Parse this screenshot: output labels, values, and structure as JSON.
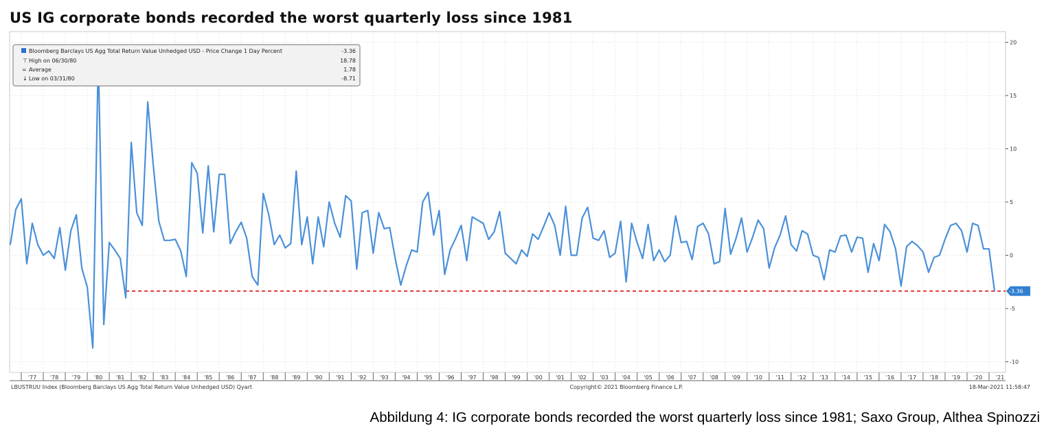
{
  "title": "US IG corporate bonds recorded the worst quarterly loss since 1981",
  "caption": "Abbildung 4: IG corporate bonds recorded the worst quarterly loss since 1981; Saxo Group, Althea Spinozzi",
  "legend": {
    "series_label": "Bloomberg Barclays US Agg Total Return Value Unhedged USD - Price Change 1 Day Percent",
    "series_value": "-3.36",
    "high_label": "High on 06/30/80",
    "high_value": "18.78",
    "avg_label": "Average",
    "avg_value": "1.78",
    "low_label": "Low on 03/31/80",
    "low_value": "-8.71"
  },
  "footer": {
    "left": "LBUSTRUU Index (Bloomberg Barclays US Agg Total Return Value Unhedged USD) Qyart",
    "center": "Copyright© 2021 Bloomberg Finance L.P.",
    "right": "18-Mar-2021 11:58:47"
  },
  "last_value_label": "-3.36",
  "colors": {
    "line": "#4a90d9",
    "ref_line": "#e03030",
    "badge": "#2f7fd0",
    "grid": "#d8d8d8"
  },
  "chart_data": {
    "type": "line",
    "title": "US IG corporate bonds recorded the worst quarterly loss since 1981",
    "ylim": [
      -11,
      21
    ],
    "yticks": [
      20,
      15,
      10,
      5,
      0,
      -5,
      -10
    ],
    "grid": true,
    "legend_position": "top-left",
    "x_start": 1976.5,
    "x_step": 0.25,
    "xtick_labels": [
      "'77",
      "'78",
      "'79",
      "'80",
      "'81",
      "'82",
      "'83",
      "'84",
      "'85",
      "'86",
      "'87",
      "'88",
      "'89",
      "'90",
      "'91",
      "'92",
      "'93",
      "'94",
      "'95",
      "'96",
      "'97",
      "'98",
      "'99",
      "'00",
      "'01",
      "'02",
      "'03",
      "'04",
      "'05",
      "'06",
      "'07",
      "'08",
      "'09",
      "'10",
      "'11",
      "'12",
      "'13",
      "'14",
      "'15",
      "'16",
      "'17",
      "'18",
      "'19",
      "'20",
      "'21"
    ],
    "reference_line": -3.36,
    "series": [
      {
        "values": [
          1.0,
          4.3,
          5.3,
          -0.8,
          3.0,
          1.0,
          0.0,
          0.4,
          -0.3,
          2.6,
          -1.4,
          2.3,
          3.8,
          -1.2,
          -3.0,
          -8.71,
          18.78,
          -6.5,
          1.2,
          0.5,
          -0.3,
          -4.0,
          10.6,
          4.0,
          2.8,
          14.4,
          8.5,
          3.2,
          1.4,
          1.4,
          1.5,
          0.4,
          -2.0,
          8.7,
          7.7,
          2.1,
          8.4,
          2.2,
          7.6,
          7.6,
          1.1,
          2.2,
          3.1,
          1.6,
          -2.0,
          -2.8,
          5.8,
          3.8,
          1.0,
          1.9,
          0.7,
          1.1,
          7.9,
          1.0,
          3.6,
          -0.8,
          3.6,
          0.8,
          5.0,
          3.0,
          1.7,
          5.6,
          5.1,
          -1.3,
          4.0,
          4.2,
          0.2,
          4.0,
          2.5,
          2.6,
          -0.3,
          -2.8,
          -1.0,
          0.5,
          0.3,
          5.0,
          5.9,
          1.9,
          4.2,
          -1.8,
          0.5,
          1.6,
          2.8,
          -0.5,
          3.6,
          3.3,
          3.0,
          1.5,
          2.2,
          4.1,
          0.2,
          -0.3,
          -0.8,
          0.5,
          -0.1,
          2.0,
          1.5,
          2.7,
          4.0,
          2.8,
          0.0,
          4.6,
          0.0,
          0.0,
          3.5,
          4.5,
          1.6,
          1.4,
          2.3,
          -0.2,
          0.2,
          3.2,
          -2.5,
          3.0,
          1.2,
          -0.3,
          2.9,
          -0.5,
          0.5,
          -0.6,
          0.0,
          3.7,
          1.2,
          1.3,
          -0.4,
          2.7,
          3.0,
          2.0,
          -0.8,
          -0.6,
          4.4,
          0.1,
          1.6,
          3.5,
          0.3,
          1.7,
          3.3,
          2.5,
          -1.2,
          0.7,
          1.9,
          3.7,
          1.0,
          0.4,
          2.3,
          2.0,
          0.0,
          -0.2,
          -2.3,
          0.5,
          0.3,
          1.8,
          1.9,
          0.3,
          1.7,
          1.6,
          -1.6,
          1.1,
          -0.5,
          2.9,
          2.2,
          0.6,
          -2.9,
          0.8,
          1.3,
          0.9,
          0.3,
          -1.6,
          -0.2,
          0.0,
          1.5,
          2.8,
          3.0,
          2.3,
          0.3,
          3.0,
          2.8,
          0.6,
          0.6,
          -3.36
        ]
      }
    ]
  }
}
